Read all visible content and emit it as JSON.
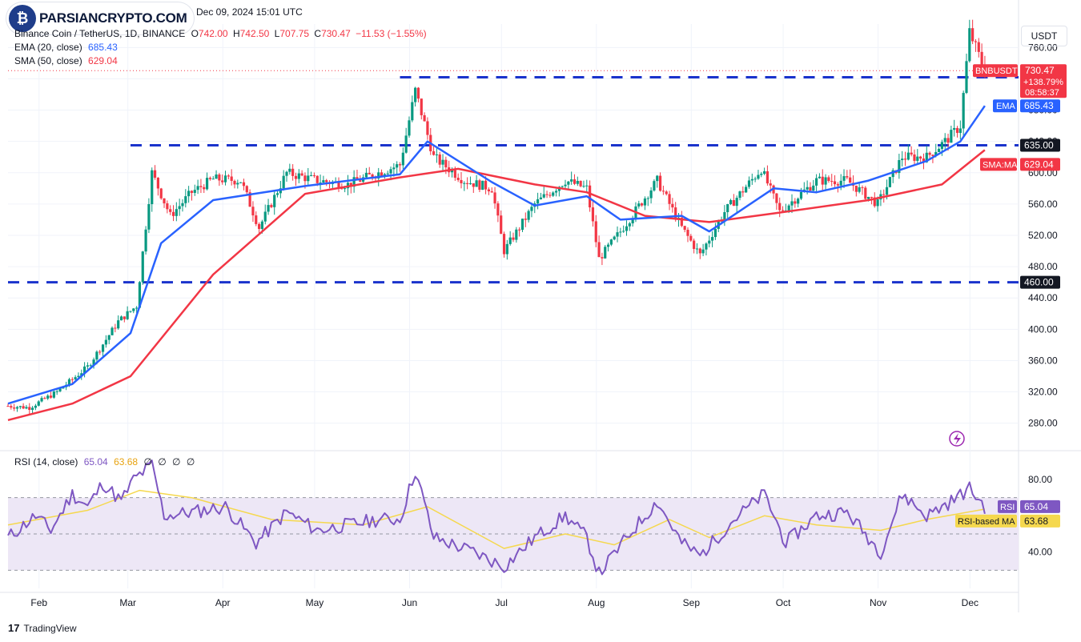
{
  "header": {
    "date_line": "Dec 09, 2024 15:01 UTC",
    "symbol": "Binance Coin / TetherUS, 1D, BINANCE",
    "ohlc": [
      {
        "k": "O",
        "v": "742.00"
      },
      {
        "k": "H",
        "v": "742.50"
      },
      {
        "k": "L",
        "v": "707.75"
      },
      {
        "k": "C",
        "v": "730.47"
      }
    ],
    "change": "−11.53 (−1.55%)",
    "ema_label": "EMA (20, close)",
    "ema_value": "685.43",
    "sma_label": "SMA (50, close)",
    "sma_value": "629.04",
    "rsi_label": "RSI (14, close)",
    "rsi_value": "65.04",
    "rsi_ma_value": "63.68",
    "rsi_extra": [
      "∅",
      "∅",
      "∅",
      "∅"
    ]
  },
  "logo_text": "PARSIANCRYPTO.COM",
  "logo_badge": "₿",
  "currency_button": "USDT",
  "footer_brand": "TradingView",
  "footer_mark": "17",
  "chart_data": {
    "type": "candlestick",
    "symbol": "BNBUSDT",
    "timeframe": "1D",
    "x_ticks": [
      "Feb",
      "Mar",
      "Apr",
      "May",
      "Jun",
      "Jul",
      "Aug",
      "Sep",
      "Oct",
      "Nov",
      "Dec"
    ],
    "y_ticks": [
      760,
      720,
      680,
      640,
      600,
      560,
      520,
      480,
      440,
      400,
      360,
      320,
      280
    ],
    "y_tick_labels": [
      "760.00",
      "720.00",
      "680.00",
      "640.00",
      "600.00",
      "560.00",
      "520.00",
      "480.00",
      "440.00",
      "400.00",
      "360.00",
      "320.00",
      "280.00"
    ],
    "ylim": [
      250,
      790
    ],
    "price_path": [
      [
        "2024-01-25",
        302
      ],
      [
        "2024-02-01",
        300
      ],
      [
        "2024-02-10",
        320
      ],
      [
        "2024-02-20",
        352
      ],
      [
        "2024-03-01",
        410
      ],
      [
        "2024-03-07",
        430
      ],
      [
        "2024-03-12",
        600
      ],
      [
        "2024-03-18",
        545
      ],
      [
        "2024-03-25",
        575
      ],
      [
        "2024-04-01",
        592
      ],
      [
        "2024-04-10",
        590
      ],
      [
        "2024-04-16",
        530
      ],
      [
        "2024-04-25",
        600
      ],
      [
        "2024-05-05",
        590
      ],
      [
        "2024-05-15",
        585
      ],
      [
        "2024-05-25",
        600
      ],
      [
        "2024-06-01",
        610
      ],
      [
        "2024-06-06",
        705
      ],
      [
        "2024-06-12",
        620
      ],
      [
        "2024-06-22",
        590
      ],
      [
        "2024-07-01",
        580
      ],
      [
        "2024-07-05",
        500
      ],
      [
        "2024-07-15",
        560
      ],
      [
        "2024-07-25",
        590
      ],
      [
        "2024-08-01",
        580
      ],
      [
        "2024-08-05",
        490
      ],
      [
        "2024-08-12",
        525
      ],
      [
        "2024-08-24",
        590
      ],
      [
        "2024-09-01",
        530
      ],
      [
        "2024-09-07",
        495
      ],
      [
        "2024-09-15",
        550
      ],
      [
        "2024-09-27",
        605
      ],
      [
        "2024-10-03",
        550
      ],
      [
        "2024-10-15",
        590
      ],
      [
        "2024-10-25",
        590
      ],
      [
        "2024-11-04",
        560
      ],
      [
        "2024-11-12",
        620
      ],
      [
        "2024-11-20",
        620
      ],
      [
        "2024-11-26",
        640
      ],
      [
        "2024-12-01",
        660
      ],
      [
        "2024-12-04",
        780
      ],
      [
        "2024-12-09",
        730
      ]
    ],
    "ema20_path": [
      [
        "2024-01-25",
        305
      ],
      [
        "2024-02-15",
        330
      ],
      [
        "2024-03-05",
        395
      ],
      [
        "2024-03-15",
        510
      ],
      [
        "2024-04-01",
        565
      ],
      [
        "2024-05-01",
        583
      ],
      [
        "2024-06-01",
        598
      ],
      [
        "2024-06-10",
        640
      ],
      [
        "2024-07-01",
        588
      ],
      [
        "2024-07-15",
        558
      ],
      [
        "2024-08-01",
        570
      ],
      [
        "2024-08-12",
        540
      ],
      [
        "2024-09-01",
        545
      ],
      [
        "2024-09-10",
        525
      ],
      [
        "2024-10-01",
        580
      ],
      [
        "2024-10-15",
        575
      ],
      [
        "2024-11-01",
        590
      ],
      [
        "2024-11-20",
        615
      ],
      [
        "2024-12-01",
        640
      ],
      [
        "2024-12-09",
        685.43
      ]
    ],
    "sma50_path": [
      [
        "2024-01-25",
        284
      ],
      [
        "2024-02-15",
        305
      ],
      [
        "2024-03-05",
        340
      ],
      [
        "2024-04-01",
        470
      ],
      [
        "2024-05-01",
        573
      ],
      [
        "2024-06-01",
        594
      ],
      [
        "2024-06-20",
        605
      ],
      [
        "2024-07-15",
        585
      ],
      [
        "2024-08-01",
        575
      ],
      [
        "2024-08-20",
        545
      ],
      [
        "2024-09-10",
        537
      ],
      [
        "2024-10-01",
        548
      ],
      [
        "2024-11-01",
        565
      ],
      [
        "2024-11-25",
        585
      ],
      [
        "2024-12-09",
        629.04
      ]
    ],
    "horizontal_levels": [
      {
        "value": 722,
        "label": "722.00",
        "from": "2024-06-01"
      },
      {
        "value": 635,
        "label": "635.00",
        "from": "2024-03-05"
      },
      {
        "value": 460,
        "label": "460.00",
        "from": "2024-01-25"
      }
    ],
    "price_tag": {
      "label": "BNBUSDT",
      "value": "730.47",
      "change": "+138.79%",
      "countdown": "08:58:37"
    },
    "ema_tag": {
      "label": "EMA",
      "value": "685.43"
    },
    "sma_tag": {
      "label": "SMA:MA",
      "value": "629.04"
    },
    "rsi": {
      "ylim": [
        20,
        95
      ],
      "y_ticks": [
        80,
        40
      ],
      "y_tick_labels": [
        "80.00",
        "40.00"
      ],
      "band": [
        30,
        70
      ],
      "mid": 50,
      "path": [
        [
          "2024-01-25",
          48
        ],
        [
          "2024-02-03",
          60
        ],
        [
          "2024-02-08",
          52
        ],
        [
          "2024-02-15",
          72
        ],
        [
          "2024-02-20",
          65
        ],
        [
          "2024-02-25",
          78
        ],
        [
          "2024-03-02",
          68
        ],
        [
          "2024-03-06",
          80
        ],
        [
          "2024-03-12",
          88
        ],
        [
          "2024-03-16",
          60
        ],
        [
          "2024-03-25",
          62
        ],
        [
          "2024-04-05",
          65
        ],
        [
          "2024-04-15",
          45
        ],
        [
          "2024-04-25",
          62
        ],
        [
          "2024-05-05",
          52
        ],
        [
          "2024-05-15",
          55
        ],
        [
          "2024-05-25",
          58
        ],
        [
          "2024-06-01",
          58
        ],
        [
          "2024-06-06",
          85
        ],
        [
          "2024-06-12",
          48
        ],
        [
          "2024-06-25",
          40
        ],
        [
          "2024-07-05",
          32
        ],
        [
          "2024-07-15",
          48
        ],
        [
          "2024-07-25",
          60
        ],
        [
          "2024-08-01",
          48
        ],
        [
          "2024-08-05",
          28
        ],
        [
          "2024-08-15",
          50
        ],
        [
          "2024-08-24",
          68
        ],
        [
          "2024-09-01",
          45
        ],
        [
          "2024-09-07",
          38
        ],
        [
          "2024-09-18",
          58
        ],
        [
          "2024-09-28",
          72
        ],
        [
          "2024-10-05",
          45
        ],
        [
          "2024-10-15",
          60
        ],
        [
          "2024-10-25",
          62
        ],
        [
          "2024-11-05",
          40
        ],
        [
          "2024-11-12",
          72
        ],
        [
          "2024-11-20",
          60
        ],
        [
          "2024-11-28",
          68
        ],
        [
          "2024-12-04",
          75
        ],
        [
          "2024-12-09",
          65.04
        ]
      ],
      "ma_path": [
        [
          "2024-01-25",
          55
        ],
        [
          "2024-02-20",
          63
        ],
        [
          "2024-03-08",
          74
        ],
        [
          "2024-03-25",
          70
        ],
        [
          "2024-04-20",
          58
        ],
        [
          "2024-05-20",
          55
        ],
        [
          "2024-06-10",
          65
        ],
        [
          "2024-07-05",
          42
        ],
        [
          "2024-07-25",
          50
        ],
        [
          "2024-08-10",
          44
        ],
        [
          "2024-08-28",
          58
        ],
        [
          "2024-09-10",
          48
        ],
        [
          "2024-09-28",
          60
        ],
        [
          "2024-10-15",
          55
        ],
        [
          "2024-11-05",
          52
        ],
        [
          "2024-11-20",
          58
        ],
        [
          "2024-12-09",
          63.68
        ]
      ],
      "rsi_tag": {
        "label": "RSI",
        "value": "65.04"
      },
      "ma_tag": {
        "label": "RSI-based MA",
        "value": "63.68"
      }
    },
    "colors": {
      "up": "#089981",
      "down": "#f23645",
      "ema": "#2962ff",
      "sma": "#f23645",
      "level": "#1a33cc",
      "rsi": "#7e57c2",
      "rsi_ma": "#f5d84e",
      "rsi_band": "#ede7f6",
      "grid": "#f0f3fa"
    }
  }
}
